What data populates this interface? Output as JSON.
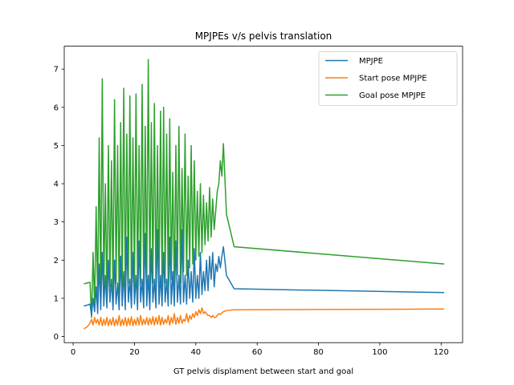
{
  "chart_data": {
    "type": "line",
    "title": "MPJPEs v/s pelvis translation",
    "xlabel": "GT pelvis displament between start and goal",
    "ylabel": "",
    "xlim": [
      -2.9,
      127
    ],
    "ylim": [
      -0.16,
      7.6
    ],
    "xticks": [
      0,
      20,
      40,
      60,
      80,
      100,
      120
    ],
    "yticks": [
      0,
      1,
      2,
      3,
      4,
      5,
      6,
      7
    ],
    "grid": false,
    "legend_position": "top-right",
    "series": [
      {
        "name": "MPJPE",
        "color": "#1f77b4",
        "x": [
          3.5,
          4.5,
          5.5,
          6,
          6.5,
          7,
          7.5,
          8,
          8.5,
          9,
          9.5,
          10,
          10.5,
          11,
          11.5,
          12,
          12.5,
          13,
          13.5,
          14,
          14.5,
          15,
          15.5,
          16,
          16.5,
          17,
          17.5,
          18,
          18.5,
          19,
          19.5,
          20,
          20.5,
          21,
          21.5,
          22,
          22.5,
          23,
          23.5,
          24,
          24.5,
          25,
          25.5,
          26,
          26.5,
          27,
          27.5,
          28,
          28.5,
          29,
          29.5,
          30,
          30.5,
          31,
          31.5,
          32,
          32.5,
          33,
          33.5,
          34,
          34.5,
          35,
          35.5,
          36,
          36.5,
          37,
          37.5,
          38,
          38.5,
          39,
          39.5,
          40,
          40.5,
          41,
          41.5,
          42,
          42.5,
          43,
          43.5,
          44,
          44.5,
          45,
          45.5,
          46,
          46.5,
          47,
          47.5,
          48,
          48.5,
          49,
          50,
          52.5,
          121
        ],
        "y": [
          0.8,
          0.82,
          0.85,
          0.55,
          1.0,
          0.65,
          1.3,
          0.6,
          1.9,
          0.7,
          2.2,
          0.8,
          1.6,
          0.75,
          2.0,
          0.9,
          1.5,
          0.7,
          2.0,
          0.85,
          1.4,
          0.7,
          2.1,
          0.8,
          1.7,
          0.7,
          2.6,
          0.9,
          1.5,
          0.75,
          2.2,
          0.85,
          1.6,
          0.7,
          2.5,
          0.9,
          1.5,
          0.75,
          2.7,
          0.8,
          1.6,
          0.7,
          2.3,
          0.9,
          1.5,
          0.75,
          2.8,
          0.85,
          1.6,
          0.8,
          2.2,
          0.9,
          1.5,
          0.8,
          2.6,
          0.85,
          1.7,
          0.8,
          2.5,
          0.9,
          1.6,
          0.85,
          2.8,
          0.9,
          1.6,
          0.85,
          2.0,
          1.0,
          1.7,
          0.9,
          2.3,
          1.0,
          1.6,
          1.0,
          2.2,
          1.1,
          1.7,
          1.2,
          2.0,
          1.2,
          2.1,
          1.5,
          2.2,
          1.3,
          1.9,
          1.7,
          2.1,
          1.8,
          2.1,
          2.35,
          1.6,
          1.25,
          1.15
        ]
      },
      {
        "name": "Start pose MPJPE",
        "color": "#ff7f0e",
        "x": [
          3.5,
          4.5,
          5.5,
          6,
          6.5,
          7,
          7.5,
          8,
          8.5,
          9,
          9.5,
          10,
          10.5,
          11,
          11.5,
          12,
          12.5,
          13,
          13.5,
          14,
          14.5,
          15,
          15.5,
          16,
          16.5,
          17,
          17.5,
          18,
          18.5,
          19,
          19.5,
          20,
          20.5,
          21,
          21.5,
          22,
          22.5,
          23,
          23.5,
          24,
          24.5,
          25,
          25.5,
          26,
          26.5,
          27,
          27.5,
          28,
          28.5,
          29,
          29.5,
          30,
          30.5,
          31,
          31.5,
          32,
          32.5,
          33,
          33.5,
          34,
          34.5,
          35,
          35.5,
          36,
          36.5,
          37,
          37.5,
          38,
          38.5,
          39,
          39.5,
          40,
          40.5,
          41,
          41.5,
          42,
          42.5,
          43,
          43.5,
          44,
          44.5,
          45,
          45.5,
          46,
          46.5,
          47,
          47.5,
          48,
          48.5,
          49,
          50,
          52.5,
          121
        ],
        "y": [
          0.2,
          0.25,
          0.35,
          0.45,
          0.3,
          0.5,
          0.35,
          0.45,
          0.3,
          0.5,
          0.28,
          0.45,
          0.3,
          0.5,
          0.28,
          0.45,
          0.3,
          0.5,
          0.28,
          0.45,
          0.3,
          0.55,
          0.28,
          0.45,
          0.3,
          0.5,
          0.28,
          0.48,
          0.3,
          0.52,
          0.28,
          0.45,
          0.3,
          0.5,
          0.3,
          0.55,
          0.3,
          0.45,
          0.32,
          0.5,
          0.3,
          0.48,
          0.32,
          0.52,
          0.3,
          0.5,
          0.32,
          0.55,
          0.3,
          0.5,
          0.32,
          0.45,
          0.35,
          0.55,
          0.3,
          0.5,
          0.35,
          0.6,
          0.32,
          0.5,
          0.35,
          0.55,
          0.35,
          0.45,
          0.4,
          0.6,
          0.38,
          0.55,
          0.45,
          0.6,
          0.5,
          0.65,
          0.55,
          0.7,
          0.6,
          0.75,
          0.6,
          0.65,
          0.6,
          0.55,
          0.55,
          0.5,
          0.55,
          0.5,
          0.5,
          0.55,
          0.6,
          0.58,
          0.62,
          0.65,
          0.68,
          0.7,
          0.72
        ]
      },
      {
        "name": "Goal pose MPJPE",
        "color": "#2ca02c",
        "x": [
          3.5,
          4.5,
          5.5,
          6,
          6.5,
          7,
          7.5,
          8,
          8.5,
          9,
          9.5,
          10,
          10.5,
          11,
          11.5,
          12,
          12.5,
          13,
          13.5,
          14,
          14.5,
          15,
          15.5,
          16,
          16.5,
          17,
          17.5,
          18,
          18.5,
          19,
          19.5,
          20,
          20.5,
          21,
          21.5,
          22,
          22.5,
          23,
          23.5,
          24,
          24.5,
          25,
          25.5,
          26,
          26.5,
          27,
          27.5,
          28,
          28.5,
          29,
          29.5,
          30,
          30.5,
          31,
          31.5,
          32,
          32.5,
          33,
          33.5,
          34,
          34.5,
          35,
          35.5,
          36,
          36.5,
          37,
          37.5,
          38,
          38.5,
          39,
          39.5,
          40,
          40.5,
          41,
          41.5,
          42,
          42.5,
          43,
          43.5,
          44,
          44.5,
          45,
          45.5,
          46,
          46.5,
          47,
          47.5,
          48,
          48.5,
          49,
          50,
          52.5,
          121
        ],
        "y": [
          1.38,
          1.4,
          1.42,
          0.5,
          2.2,
          0.8,
          3.4,
          0.9,
          5.2,
          1.0,
          6.75,
          1.2,
          4.0,
          1.0,
          5.0,
          1.3,
          4.6,
          1.1,
          6.2,
          1.4,
          5.0,
          1.0,
          5.6,
          1.3,
          6.5,
          1.2,
          5.3,
          1.4,
          6.3,
          1.1,
          5.2,
          1.3,
          6.35,
          1.2,
          5.0,
          1.4,
          6.6,
          1.1,
          5.5,
          1.3,
          7.25,
          1.2,
          5.6,
          1.4,
          6.1,
          1.1,
          5.0,
          1.3,
          5.9,
          1.2,
          6.0,
          1.4,
          5.3,
          1.3,
          5.7,
          1.5,
          4.3,
          1.2,
          5.0,
          1.6,
          5.5,
          1.4,
          4.4,
          1.7,
          5.3,
          1.6,
          4.2,
          1.8,
          5.0,
          1.9,
          4.6,
          2.0,
          3.8,
          2.1,
          4.0,
          2.2,
          3.7,
          2.4,
          3.5,
          2.5,
          3.9,
          2.6,
          3.6,
          2.8,
          3.3,
          3.8,
          4.0,
          4.6,
          4.2,
          5.05,
          3.2,
          2.35,
          1.9
        ]
      }
    ]
  }
}
